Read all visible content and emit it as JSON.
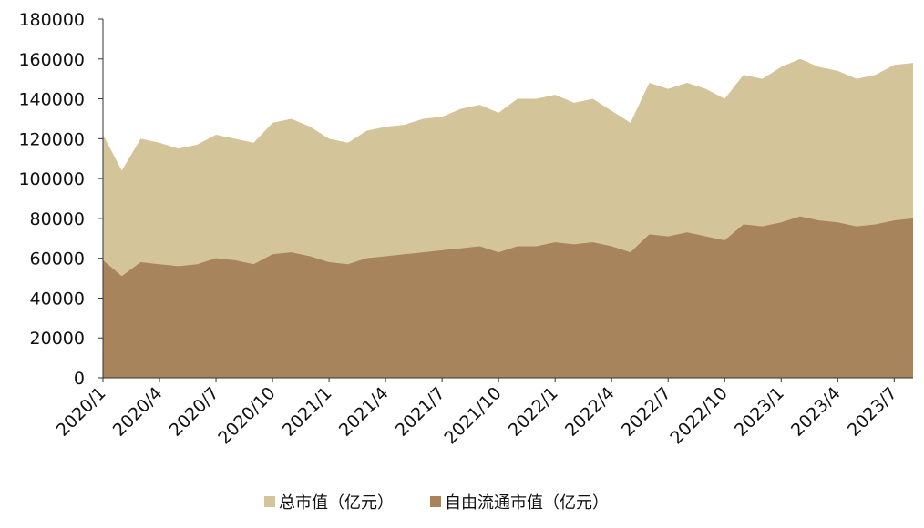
{
  "chart_data": {
    "type": "area",
    "categories": [
      "2020/1",
      null,
      null,
      "2020/4",
      null,
      null,
      "2020/7",
      null,
      null,
      "2020/10",
      null,
      null,
      "2021/1",
      null,
      null,
      "2021/4",
      null,
      null,
      "2021/7",
      null,
      null,
      "2021/10",
      null,
      null,
      "2022/1",
      null,
      null,
      "2022/4",
      null,
      null,
      "2022/7",
      null,
      null,
      "2022/10",
      null,
      null,
      "2023/1",
      null,
      null,
      "2023/4",
      null,
      null,
      "2023/7",
      null
    ],
    "series": [
      {
        "name": "总市值（亿元）",
        "color": "#d4c49a",
        "values": [
          122000,
          104000,
          120000,
          118000,
          115000,
          117000,
          122000,
          120000,
          118000,
          128000,
          130000,
          126000,
          120000,
          118000,
          124000,
          126000,
          127000,
          130000,
          131000,
          135000,
          137000,
          133000,
          140000,
          140000,
          142000,
          138000,
          140000,
          134000,
          128000,
          148000,
          145000,
          148000,
          145000,
          140000,
          152000,
          150000,
          156000,
          160000,
          156000,
          154000,
          150000,
          152000,
          157000,
          158000
        ]
      },
      {
        "name": "自由流通市值（亿元）",
        "color": "#a7845b",
        "values": [
          59000,
          51000,
          58000,
          57000,
          56000,
          57000,
          60000,
          59000,
          57000,
          62000,
          63000,
          61000,
          58000,
          57000,
          60000,
          61000,
          62000,
          63000,
          64000,
          65000,
          66000,
          63000,
          66000,
          66000,
          68000,
          67000,
          68000,
          66000,
          63000,
          72000,
          71000,
          73000,
          71000,
          69000,
          77000,
          76000,
          78000,
          81000,
          79000,
          78000,
          76000,
          77000,
          79000,
          80000
        ]
      }
    ],
    "ylim": [
      0,
      180000
    ],
    "yticks": [
      0,
      20000,
      40000,
      60000,
      80000,
      100000,
      120000,
      140000,
      160000,
      180000
    ],
    "legend": "bottom"
  }
}
